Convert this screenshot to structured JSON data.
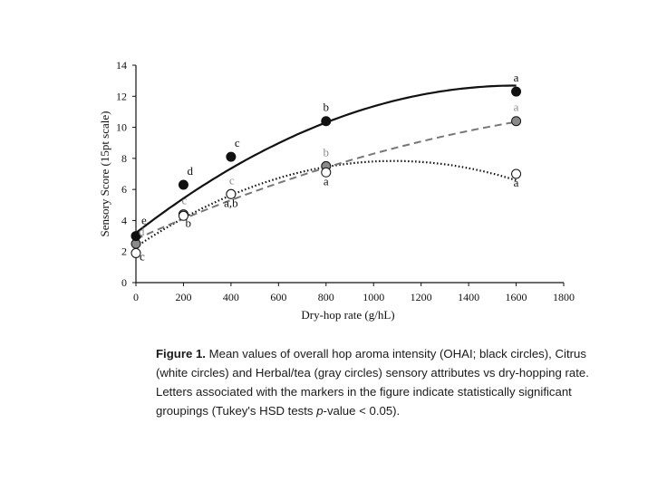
{
  "chart_data": {
    "type": "scatter",
    "title": "",
    "xlabel": "Dry-hop rate (g/hL)",
    "ylabel": "Sensory Score (15pt scale)",
    "xlim": [
      0,
      1800
    ],
    "ylim": [
      0,
      14
    ],
    "x_ticks": [
      "0",
      "200",
      "400",
      "600",
      "800",
      "1000",
      "1200",
      "1400",
      "1600",
      "1800"
    ],
    "y_ticks": [
      "0",
      "2",
      "4",
      "6",
      "8",
      "10",
      "12",
      "14"
    ],
    "series": [
      {
        "name": "OHAI",
        "marker": "black circles",
        "marker_color": "#111111",
        "line_style": "solid",
        "points": [
          {
            "x": 0,
            "y": 3.0,
            "label": "e"
          },
          {
            "x": 200,
            "y": 6.3,
            "label": "d"
          },
          {
            "x": 400,
            "y": 8.1,
            "label": "c"
          },
          {
            "x": 800,
            "y": 10.4,
            "label": "b"
          },
          {
            "x": 1600,
            "y": 12.3,
            "label": "a"
          }
        ],
        "fit": {
          "a": 3.2,
          "b": 0.01185,
          "c": -3.7e-06
        }
      },
      {
        "name": "Citrus",
        "marker": "white circles",
        "marker_color": "#ffffff",
        "line_style": "dotted",
        "points": [
          {
            "x": 0,
            "y": 1.9,
            "label": "c"
          },
          {
            "x": 200,
            "y": 4.3,
            "label": "b"
          },
          {
            "x": 400,
            "y": 5.7,
            "label": "a,b"
          },
          {
            "x": 800,
            "y": 7.1,
            "label": "a"
          },
          {
            "x": 1600,
            "y": 7.0,
            "label": "a"
          }
        ],
        "fit": {
          "a": 2.3,
          "b": 0.0102,
          "c": -4.7e-06
        }
      },
      {
        "name": "Herbal/tea",
        "marker": "gray circles",
        "marker_color": "#8a8a8a",
        "line_style": "dashed",
        "points": [
          {
            "x": 0,
            "y": 2.5,
            "label": "d"
          },
          {
            "x": 200,
            "y": 4.4,
            "label": "c"
          },
          {
            "x": 400,
            "y": 5.7,
            "label": "c"
          },
          {
            "x": 800,
            "y": 7.5,
            "label": "b"
          },
          {
            "x": 1600,
            "y": 10.4,
            "label": "a"
          }
        ],
        "fit": {
          "a": 2.8,
          "b": 0.0068,
          "c": -1.3e-06
        }
      }
    ]
  },
  "caption": {
    "label": "Figure 1.",
    "text_before_italic": "Mean values of overall hop aroma intensity (OHAI; black circles), Citrus (white circles) and Herbal/tea (gray circles) sensory attributes vs dry-hopping rate. Letters associated with the markers in the figure indicate statistically significant groupings (Tukey's HSD tests ",
    "italic": "p",
    "text_after_italic": "-value < 0.05)."
  }
}
